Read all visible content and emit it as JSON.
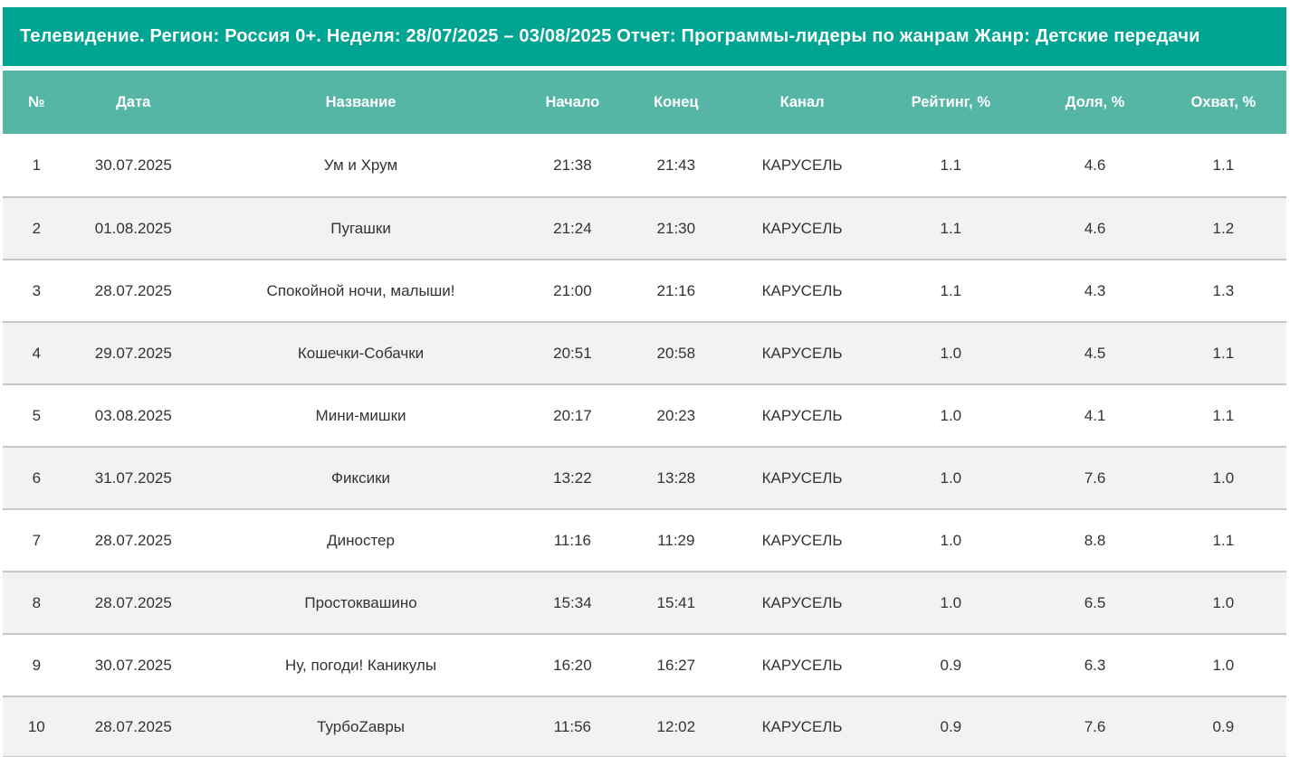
{
  "title": "Телевидение. Регион: Россия 0+. Неделя: 28/07/2025 – 03/08/2025 Отчет: Программы-лидеры по жанрам Жанр: Детские передачи",
  "colors": {
    "title_bar_bg": "#00A493",
    "header_bg": "#55B6A6",
    "header_text": "#FFFFFF",
    "row_alt_bg": "#F2F2F2",
    "separator": "#C7C7C7",
    "body_text": "#333333"
  },
  "chart_data": {
    "type": "table",
    "title": "Телевидение. Регион: Россия 0+. Неделя: 28/07/2025 – 03/08/2025 Отчет: Программы-лидеры по жанрам Жанр: Детские передачи",
    "columns": [
      "№",
      "Дата",
      "Название",
      "Начало",
      "Конец",
      "Канал",
      "Рейтинг, %",
      "Доля, %",
      "Охват, %"
    ],
    "column_keys": [
      "col-number",
      "col-date",
      "col-name",
      "col-start",
      "col-end",
      "col-channel",
      "col-rating",
      "col-share",
      "col-reach"
    ],
    "rows": [
      [
        "1",
        "30.07.2025",
        "Ум и Хрум",
        "21:38",
        "21:43",
        "КАРУСЕЛЬ",
        "1.1",
        "4.6",
        "1.1"
      ],
      [
        "2",
        "01.08.2025",
        "Пугашки",
        "21:24",
        "21:30",
        "КАРУСЕЛЬ",
        "1.1",
        "4.6",
        "1.2"
      ],
      [
        "3",
        "28.07.2025",
        "Спокойной ночи, малыши!",
        "21:00",
        "21:16",
        "КАРУСЕЛЬ",
        "1.1",
        "4.3",
        "1.3"
      ],
      [
        "4",
        "29.07.2025",
        "Кошечки-Собачки",
        "20:51",
        "20:58",
        "КАРУСЕЛЬ",
        "1.0",
        "4.5",
        "1.1"
      ],
      [
        "5",
        "03.08.2025",
        "Мини-мишки",
        "20:17",
        "20:23",
        "КАРУСЕЛЬ",
        "1.0",
        "4.1",
        "1.1"
      ],
      [
        "6",
        "31.07.2025",
        "Фиксики",
        "13:22",
        "13:28",
        "КАРУСЕЛЬ",
        "1.0",
        "7.6",
        "1.0"
      ],
      [
        "7",
        "28.07.2025",
        "Диностер",
        "11:16",
        "11:29",
        "КАРУСЕЛЬ",
        "1.0",
        "8.8",
        "1.1"
      ],
      [
        "8",
        "28.07.2025",
        "Простоквашино",
        "15:34",
        "15:41",
        "КАРУСЕЛЬ",
        "1.0",
        "6.5",
        "1.0"
      ],
      [
        "9",
        "30.07.2025",
        "Ну, погоди! Каникулы",
        "16:20",
        "16:27",
        "КАРУСЕЛЬ",
        "0.9",
        "6.3",
        "1.0"
      ],
      [
        "10",
        "28.07.2025",
        "ТурбоZавры",
        "11:56",
        "12:02",
        "КАРУСЕЛЬ",
        "0.9",
        "7.6",
        "0.9"
      ]
    ]
  }
}
